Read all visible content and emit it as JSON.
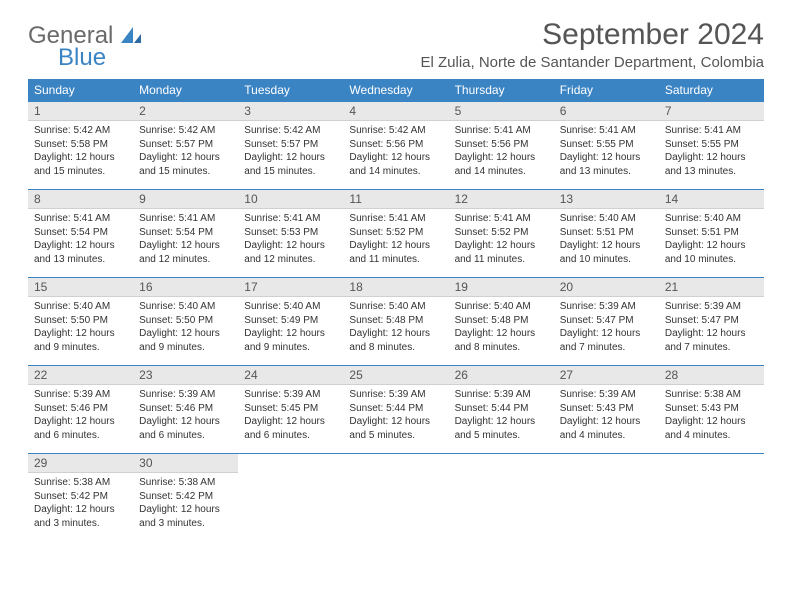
{
  "logo": {
    "general": "General",
    "blue": "Blue"
  },
  "title": "September 2024",
  "location": "El Zulia, Norte de Santander Department, Colombia",
  "weekday_headers": [
    "Sunday",
    "Monday",
    "Tuesday",
    "Wednesday",
    "Thursday",
    "Friday",
    "Saturday"
  ],
  "colors": {
    "header_bg": "#3b84c4",
    "header_fg": "#ffffff",
    "daynum_bg": "#e8e8e8",
    "cell_border": "#3b84c4",
    "text": "#333333",
    "title_text": "#555555"
  },
  "days": [
    {
      "n": 1,
      "sunrise": "5:42 AM",
      "sunset": "5:58 PM",
      "dl": "12 hours and 15 minutes"
    },
    {
      "n": 2,
      "sunrise": "5:42 AM",
      "sunset": "5:57 PM",
      "dl": "12 hours and 15 minutes"
    },
    {
      "n": 3,
      "sunrise": "5:42 AM",
      "sunset": "5:57 PM",
      "dl": "12 hours and 15 minutes"
    },
    {
      "n": 4,
      "sunrise": "5:42 AM",
      "sunset": "5:56 PM",
      "dl": "12 hours and 14 minutes"
    },
    {
      "n": 5,
      "sunrise": "5:41 AM",
      "sunset": "5:56 PM",
      "dl": "12 hours and 14 minutes"
    },
    {
      "n": 6,
      "sunrise": "5:41 AM",
      "sunset": "5:55 PM",
      "dl": "12 hours and 13 minutes"
    },
    {
      "n": 7,
      "sunrise": "5:41 AM",
      "sunset": "5:55 PM",
      "dl": "12 hours and 13 minutes"
    },
    {
      "n": 8,
      "sunrise": "5:41 AM",
      "sunset": "5:54 PM",
      "dl": "12 hours and 13 minutes"
    },
    {
      "n": 9,
      "sunrise": "5:41 AM",
      "sunset": "5:54 PM",
      "dl": "12 hours and 12 minutes"
    },
    {
      "n": 10,
      "sunrise": "5:41 AM",
      "sunset": "5:53 PM",
      "dl": "12 hours and 12 minutes"
    },
    {
      "n": 11,
      "sunrise": "5:41 AM",
      "sunset": "5:52 PM",
      "dl": "12 hours and 11 minutes"
    },
    {
      "n": 12,
      "sunrise": "5:41 AM",
      "sunset": "5:52 PM",
      "dl": "12 hours and 11 minutes"
    },
    {
      "n": 13,
      "sunrise": "5:40 AM",
      "sunset": "5:51 PM",
      "dl": "12 hours and 10 minutes"
    },
    {
      "n": 14,
      "sunrise": "5:40 AM",
      "sunset": "5:51 PM",
      "dl": "12 hours and 10 minutes"
    },
    {
      "n": 15,
      "sunrise": "5:40 AM",
      "sunset": "5:50 PM",
      "dl": "12 hours and 9 minutes"
    },
    {
      "n": 16,
      "sunrise": "5:40 AM",
      "sunset": "5:50 PM",
      "dl": "12 hours and 9 minutes"
    },
    {
      "n": 17,
      "sunrise": "5:40 AM",
      "sunset": "5:49 PM",
      "dl": "12 hours and 9 minutes"
    },
    {
      "n": 18,
      "sunrise": "5:40 AM",
      "sunset": "5:48 PM",
      "dl": "12 hours and 8 minutes"
    },
    {
      "n": 19,
      "sunrise": "5:40 AM",
      "sunset": "5:48 PM",
      "dl": "12 hours and 8 minutes"
    },
    {
      "n": 20,
      "sunrise": "5:39 AM",
      "sunset": "5:47 PM",
      "dl": "12 hours and 7 minutes"
    },
    {
      "n": 21,
      "sunrise": "5:39 AM",
      "sunset": "5:47 PM",
      "dl": "12 hours and 7 minutes"
    },
    {
      "n": 22,
      "sunrise": "5:39 AM",
      "sunset": "5:46 PM",
      "dl": "12 hours and 6 minutes"
    },
    {
      "n": 23,
      "sunrise": "5:39 AM",
      "sunset": "5:46 PM",
      "dl": "12 hours and 6 minutes"
    },
    {
      "n": 24,
      "sunrise": "5:39 AM",
      "sunset": "5:45 PM",
      "dl": "12 hours and 6 minutes"
    },
    {
      "n": 25,
      "sunrise": "5:39 AM",
      "sunset": "5:44 PM",
      "dl": "12 hours and 5 minutes"
    },
    {
      "n": 26,
      "sunrise": "5:39 AM",
      "sunset": "5:44 PM",
      "dl": "12 hours and 5 minutes"
    },
    {
      "n": 27,
      "sunrise": "5:39 AM",
      "sunset": "5:43 PM",
      "dl": "12 hours and 4 minutes"
    },
    {
      "n": 28,
      "sunrise": "5:38 AM",
      "sunset": "5:43 PM",
      "dl": "12 hours and 4 minutes"
    },
    {
      "n": 29,
      "sunrise": "5:38 AM",
      "sunset": "5:42 PM",
      "dl": "12 hours and 3 minutes"
    },
    {
      "n": 30,
      "sunrise": "5:38 AM",
      "sunset": "5:42 PM",
      "dl": "12 hours and 3 minutes"
    }
  ],
  "labels": {
    "sunrise": "Sunrise:",
    "sunset": "Sunset:",
    "daylight": "Daylight:"
  },
  "start_weekday": 0,
  "total_cells": 35
}
